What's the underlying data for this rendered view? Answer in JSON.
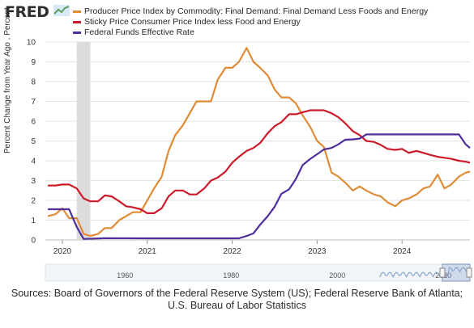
{
  "logo": {
    "text": "FRED"
  },
  "source": {
    "line1": "Sources: Board of Governors of the Federal Reserve System (US); Federal Reserve Bank of Atlanta;",
    "line2": "U.S. Bureau of Labor Statistics"
  },
  "chart_data": {
    "type": "line",
    "ylabel": "Percent Change from Year Ago , Percent",
    "ylim": [
      0,
      10
    ],
    "xlim": [
      2019.8,
      2024.8
    ],
    "yticks": [
      "0",
      "1",
      "2",
      "3",
      "4",
      "5",
      "6",
      "7",
      "8",
      "9",
      "10"
    ],
    "xticks": [
      "2020",
      "2021",
      "2022",
      "2023",
      "2024"
    ],
    "navigator_ticks": [
      "1960",
      "1980",
      "2000",
      "2020"
    ],
    "legend_position": "top",
    "grid": true,
    "recession_shading": [
      2020.17,
      2020.33
    ],
    "series": [
      {
        "name": "Producer Price Index by Commodity: Final Demand: Final Demand Less Foods and Energy",
        "color": "#e08b36",
        "points": [
          [
            2019.83,
            1.2
          ],
          [
            2019.92,
            1.3
          ],
          [
            2020.0,
            1.6
          ],
          [
            2020.08,
            1.1
          ],
          [
            2020.17,
            1.1
          ],
          [
            2020.25,
            0.3
          ],
          [
            2020.33,
            0.2
          ],
          [
            2020.42,
            0.3
          ],
          [
            2020.5,
            0.6
          ],
          [
            2020.58,
            0.6
          ],
          [
            2020.67,
            1.0
          ],
          [
            2020.75,
            1.2
          ],
          [
            2020.83,
            1.4
          ],
          [
            2020.92,
            1.4
          ],
          [
            2021.0,
            2.0
          ],
          [
            2021.08,
            2.6
          ],
          [
            2021.17,
            3.2
          ],
          [
            2021.25,
            4.5
          ],
          [
            2021.33,
            5.3
          ],
          [
            2021.42,
            5.8
          ],
          [
            2021.5,
            6.4
          ],
          [
            2021.58,
            7.0
          ],
          [
            2021.67,
            7.0
          ],
          [
            2021.75,
            7.0
          ],
          [
            2021.83,
            8.1
          ],
          [
            2021.92,
            8.7
          ],
          [
            2022.0,
            8.7
          ],
          [
            2022.08,
            9.0
          ],
          [
            2022.17,
            9.7
          ],
          [
            2022.25,
            9.0
          ],
          [
            2022.33,
            8.7
          ],
          [
            2022.42,
            8.3
          ],
          [
            2022.5,
            7.6
          ],
          [
            2022.58,
            7.2
          ],
          [
            2022.67,
            7.2
          ],
          [
            2022.75,
            6.9
          ],
          [
            2022.83,
            6.3
          ],
          [
            2022.92,
            5.7
          ],
          [
            2023.0,
            5.0
          ],
          [
            2023.08,
            4.7
          ],
          [
            2023.17,
            3.4
          ],
          [
            2023.25,
            3.2
          ],
          [
            2023.33,
            2.9
          ],
          [
            2023.42,
            2.5
          ],
          [
            2023.5,
            2.7
          ],
          [
            2023.58,
            2.5
          ],
          [
            2023.67,
            2.3
          ],
          [
            2023.75,
            2.2
          ],
          [
            2023.83,
            1.9
          ],
          [
            2023.92,
            1.7
          ],
          [
            2024.0,
            2.0
          ],
          [
            2024.08,
            2.1
          ],
          [
            2024.17,
            2.3
          ],
          [
            2024.25,
            2.6
          ],
          [
            2024.33,
            2.7
          ],
          [
            2024.42,
            3.3
          ],
          [
            2024.5,
            2.6
          ],
          [
            2024.58,
            2.8
          ],
          [
            2024.67,
            3.2
          ],
          [
            2024.75,
            3.4
          ],
          [
            2024.8,
            3.45
          ]
        ]
      },
      {
        "name": "Sticky Price Consumer Price Index less Food and Energy",
        "color": "#cc1a2b",
        "points": [
          [
            2019.83,
            2.75
          ],
          [
            2019.92,
            2.75
          ],
          [
            2020.0,
            2.8
          ],
          [
            2020.08,
            2.8
          ],
          [
            2020.17,
            2.6
          ],
          [
            2020.25,
            2.1
          ],
          [
            2020.33,
            1.95
          ],
          [
            2020.42,
            1.95
          ],
          [
            2020.5,
            2.25
          ],
          [
            2020.58,
            2.2
          ],
          [
            2020.67,
            1.95
          ],
          [
            2020.75,
            1.7
          ],
          [
            2020.83,
            1.65
          ],
          [
            2020.92,
            1.55
          ],
          [
            2021.0,
            1.35
          ],
          [
            2021.08,
            1.35
          ],
          [
            2021.17,
            1.6
          ],
          [
            2021.25,
            2.2
          ],
          [
            2021.33,
            2.5
          ],
          [
            2021.42,
            2.5
          ],
          [
            2021.5,
            2.3
          ],
          [
            2021.58,
            2.3
          ],
          [
            2021.67,
            2.6
          ],
          [
            2021.75,
            3.0
          ],
          [
            2021.83,
            3.15
          ],
          [
            2021.92,
            3.45
          ],
          [
            2022.0,
            3.9
          ],
          [
            2022.08,
            4.2
          ],
          [
            2022.17,
            4.5
          ],
          [
            2022.25,
            4.65
          ],
          [
            2022.33,
            4.9
          ],
          [
            2022.42,
            5.4
          ],
          [
            2022.5,
            5.75
          ],
          [
            2022.58,
            5.95
          ],
          [
            2022.67,
            6.35
          ],
          [
            2022.75,
            6.35
          ],
          [
            2022.83,
            6.45
          ],
          [
            2022.92,
            6.55
          ],
          [
            2023.0,
            6.55
          ],
          [
            2023.08,
            6.55
          ],
          [
            2023.17,
            6.4
          ],
          [
            2023.25,
            6.2
          ],
          [
            2023.33,
            5.9
          ],
          [
            2023.42,
            5.5
          ],
          [
            2023.5,
            5.3
          ],
          [
            2023.58,
            5.0
          ],
          [
            2023.67,
            4.95
          ],
          [
            2023.75,
            4.8
          ],
          [
            2023.83,
            4.6
          ],
          [
            2023.92,
            4.55
          ],
          [
            2024.0,
            4.6
          ],
          [
            2024.08,
            4.4
          ],
          [
            2024.17,
            4.5
          ],
          [
            2024.25,
            4.4
          ],
          [
            2024.33,
            4.3
          ],
          [
            2024.42,
            4.2
          ],
          [
            2024.5,
            4.15
          ],
          [
            2024.58,
            4.1
          ],
          [
            2024.67,
            4.0
          ],
          [
            2024.75,
            3.95
          ],
          [
            2024.8,
            3.9
          ]
        ]
      },
      {
        "name": "Federal Funds Effective Rate",
        "color": "#4f2e9c",
        "points": [
          [
            2019.83,
            1.55
          ],
          [
            2020.0,
            1.55
          ],
          [
            2020.08,
            1.55
          ],
          [
            2020.17,
            0.65
          ],
          [
            2020.25,
            0.05
          ],
          [
            2020.5,
            0.09
          ],
          [
            2021.0,
            0.08
          ],
          [
            2021.5,
            0.08
          ],
          [
            2022.0,
            0.08
          ],
          [
            2022.08,
            0.08
          ],
          [
            2022.17,
            0.2
          ],
          [
            2022.25,
            0.33
          ],
          [
            2022.33,
            0.77
          ],
          [
            2022.42,
            1.21
          ],
          [
            2022.5,
            1.68
          ],
          [
            2022.58,
            2.33
          ],
          [
            2022.67,
            2.56
          ],
          [
            2022.75,
            3.08
          ],
          [
            2022.83,
            3.78
          ],
          [
            2022.92,
            4.1
          ],
          [
            2023.0,
            4.33
          ],
          [
            2023.08,
            4.57
          ],
          [
            2023.17,
            4.65
          ],
          [
            2023.25,
            4.83
          ],
          [
            2023.33,
            5.06
          ],
          [
            2023.42,
            5.08
          ],
          [
            2023.5,
            5.12
          ],
          [
            2023.58,
            5.33
          ],
          [
            2023.67,
            5.33
          ],
          [
            2024.0,
            5.33
          ],
          [
            2024.5,
            5.33
          ],
          [
            2024.67,
            5.33
          ],
          [
            2024.75,
            4.83
          ],
          [
            2024.8,
            4.65
          ]
        ]
      }
    ]
  }
}
